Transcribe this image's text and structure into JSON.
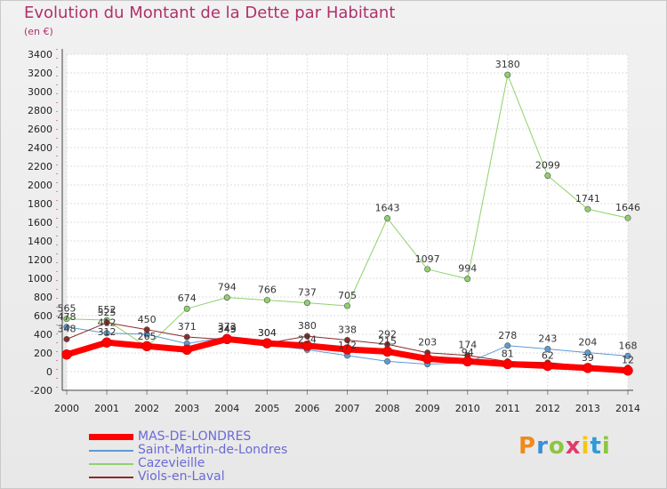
{
  "title": "Evolution du Montant de la Dette par Habitant",
  "subtitle": "(en €)",
  "brand": "Proxiti",
  "brand_colors": [
    "#f08a1c",
    "#3a8fd6",
    "#8cc63f",
    "#e23a6a",
    "#f5c518",
    "#2e9bd6",
    "#8cc63f"
  ],
  "chart_data": {
    "type": "line",
    "title": "Evolution du Montant de la Dette par Habitant",
    "subtitle": "(en €)",
    "xlabel": "",
    "ylabel": "",
    "ylim": [
      -200,
      3400
    ],
    "yticks": [
      -200,
      0,
      200,
      400,
      600,
      800,
      1000,
      1200,
      1400,
      1600,
      1800,
      2000,
      2200,
      2400,
      2600,
      2800,
      3000,
      3200,
      3400
    ],
    "x": [
      "2000",
      "2001",
      "2002",
      "2003",
      "2004",
      "2005",
      "2006",
      "2007",
      "2008",
      "2009",
      "2010",
      "2011",
      "2012",
      "2013",
      "2014"
    ],
    "grid": true,
    "legend_position": "bottom-left",
    "series": [
      {
        "name": "MAS-DE-LONDRES",
        "color": "#ff0000",
        "line_width": 7,
        "values": [
          183,
          312,
          273,
          235,
          349,
          304,
          277,
          238,
          215,
          138,
          110,
          81,
          62,
          39,
          12
        ],
        "labels": [
          "",
          "312",
          "",
          "",
          "349",
          "304",
          "",
          "",
          "215",
          "",
          "",
          "81",
          "62",
          "39",
          "12"
        ]
      },
      {
        "name": "Saint-Martin-de-Londres",
        "color": "#5b9bd5",
        "line_width": 1,
        "values": [
          478,
          412,
          400,
          300,
          372,
          290,
          234,
          172,
          110,
          80,
          94,
          278,
          243,
          204,
          168
        ],
        "labels": [
          "478",
          "412",
          "",
          "",
          "372",
          "",
          "234",
          "172",
          "",
          "",
          "94",
          "278",
          "243",
          "204",
          "168"
        ]
      },
      {
        "name": "Cazevieille",
        "color": "#8fd16b",
        "line_width": 1,
        "values": [
          565,
          552,
          265,
          674,
          794,
          766,
          737,
          705,
          1643,
          1097,
          994,
          3180,
          2099,
          1741,
          1646
        ],
        "labels": [
          "565",
          "552",
          "265",
          "674",
          "794",
          "766",
          "737",
          "705",
          "1643",
          "1097",
          "994",
          "3180",
          "2099",
          "1741",
          "1646"
        ]
      },
      {
        "name": "Viols-en-Laval",
        "color": "#8b2a2a",
        "line_width": 1,
        "values": [
          348,
          525,
          450,
          371,
          343,
          304,
          380,
          338,
          292,
          203,
          174,
          109,
          97,
          58,
          42
        ],
        "labels": [
          "348",
          "525",
          "450",
          "371",
          "343",
          "304",
          "380",
          "338",
          "292",
          "203",
          "174",
          "",
          "",
          "",
          ""
        ]
      }
    ]
  }
}
